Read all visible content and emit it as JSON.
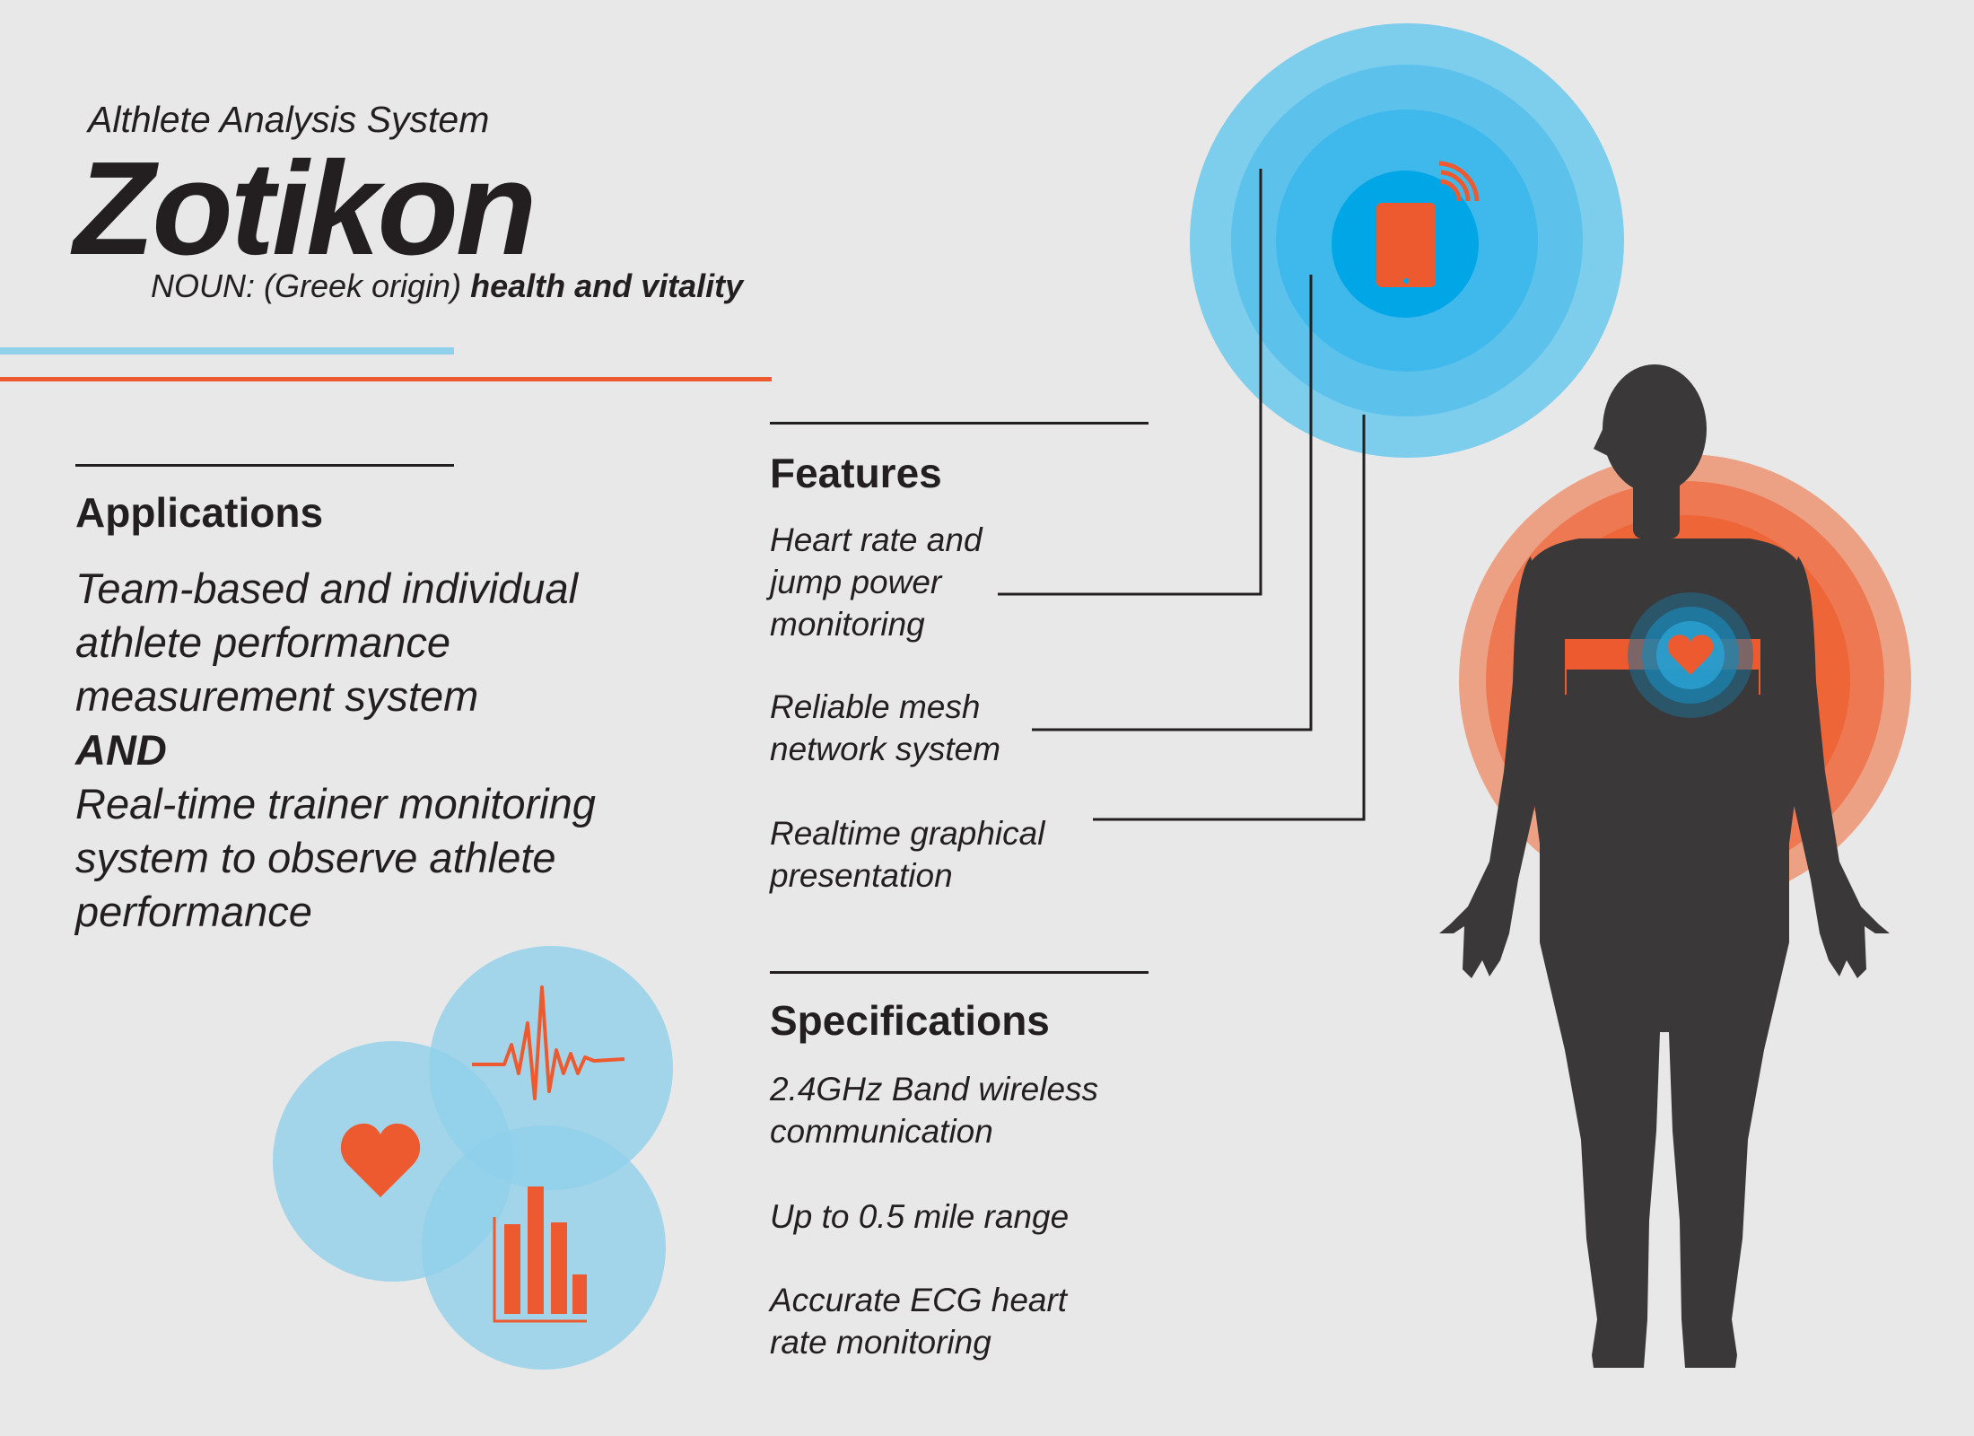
{
  "header": {
    "subtitle": "Althlete Analysis System",
    "title": "Zotikon",
    "definition_prefix": "NOUN: (Greek origin)",
    "definition_emphasis": "health and vitality"
  },
  "applications": {
    "heading": "Applications",
    "lines": [
      "Team-based and individual",
      "athlete performance",
      "measurement system",
      "AND",
      "Real-time trainer monitoring",
      "system to observe athlete",
      "performance"
    ]
  },
  "features": {
    "heading": "Features",
    "items": [
      [
        "Heart rate and",
        "jump power",
        "monitoring"
      ],
      [
        "Reliable mesh",
        "network system"
      ],
      [
        "Realtime graphical",
        "presentation"
      ]
    ]
  },
  "specifications": {
    "heading": "Specifications",
    "items": [
      [
        "2.4GHz Band wireless",
        "communication"
      ],
      [
        "Up to 0.5 mile range"
      ],
      [
        "Accurate ECG heart",
        "rate monitoring"
      ]
    ]
  },
  "icons": {
    "device": "tablet-wifi-icon",
    "heart": "heart-icon",
    "pulse": "ecg-pulse-icon",
    "bars": "bar-chart-icon",
    "body": "human-silhouette-icon",
    "chest_strap": "chest-strap-heart-icon"
  },
  "colors": {
    "accent_orange": "#ee5a2f",
    "accent_blue": "#00a6e6",
    "light_blue": "#8fd0ea",
    "text": "#231f20",
    "silhouette": "#3a3839",
    "background": "#e9e8e8"
  }
}
